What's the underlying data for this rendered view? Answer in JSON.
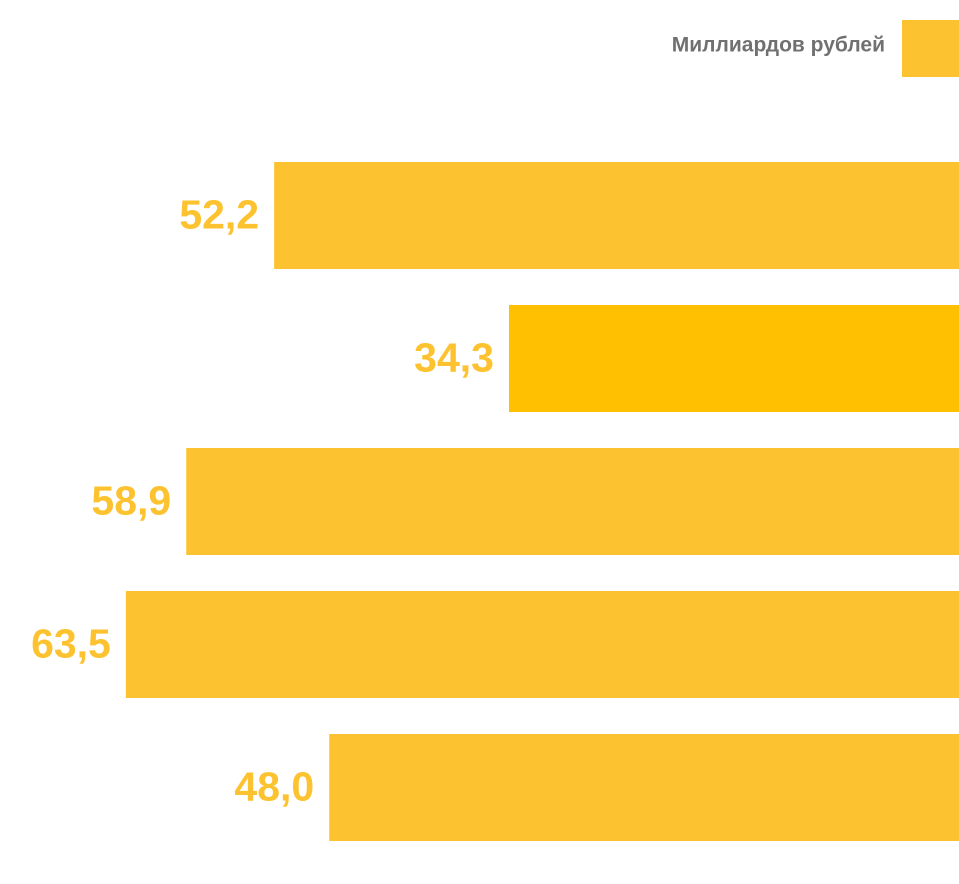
{
  "chart_data": {
    "type": "bar",
    "orientation": "horizontal",
    "series": [
      {
        "name": "Миллиардов рублей",
        "color": "#fdc22f",
        "values": [
          52.2,
          34.3,
          58.9,
          63.5,
          48.0
        ],
        "value_labels": [
          "52,2",
          "34,3",
          "58,9",
          "63,5",
          "48,0"
        ],
        "colors": [
          "#fdc22f",
          "#fec000",
          "#fdc22f",
          "#fdc22f",
          "#fdc22f"
        ]
      }
    ],
    "legend": "top-right"
  }
}
